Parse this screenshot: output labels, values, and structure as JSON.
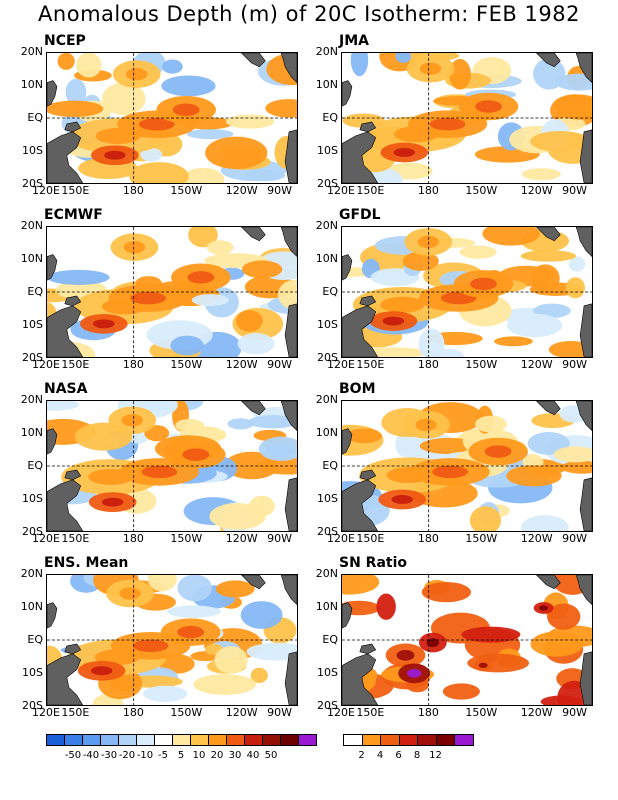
{
  "title": "Anomalous Depth (m) of 20C Isotherm: FEB 1982",
  "y_ticks": [
    "20N",
    "10N",
    "EQ",
    "10S",
    "20S"
  ],
  "x_ticks": [
    "120E",
    "150E",
    "180",
    "150W",
    "120W",
    "90W"
  ],
  "panels": [
    {
      "name": "NCEP"
    },
    {
      "name": "JMA"
    },
    {
      "name": "ECMWF"
    },
    {
      "name": "GFDL"
    },
    {
      "name": "NASA"
    },
    {
      "name": "BOM"
    },
    {
      "name": "ENS. Mean"
    },
    {
      "name": "SN Ratio"
    }
  ],
  "colors": {
    "land": "#606060",
    "anomaly_scale": [
      "#1a5ed8",
      "#3a80e8",
      "#5c9cf0",
      "#86b8f5",
      "#b0d4f8",
      "#d8ecfc",
      "#ffffff",
      "#ffe9a0",
      "#ffc24a",
      "#ff9a1c",
      "#f05a12",
      "#c81e0e",
      "#941006",
      "#6c0000",
      "#9a1ad2"
    ],
    "ratio_scale": [
      "#ffffff",
      "#ff9a1c",
      "#f06012",
      "#d22010",
      "#a01008",
      "#7c0000",
      "#9a1ad2"
    ]
  },
  "colorbar_anomaly": {
    "labels": [
      "-50",
      "-40",
      "-30",
      "-20",
      "-10",
      "-5",
      "5",
      "10",
      "20",
      "30",
      "40",
      "50"
    ]
  },
  "colorbar_ratio": {
    "labels": [
      "2",
      "4",
      "6",
      "8",
      "12"
    ]
  }
}
